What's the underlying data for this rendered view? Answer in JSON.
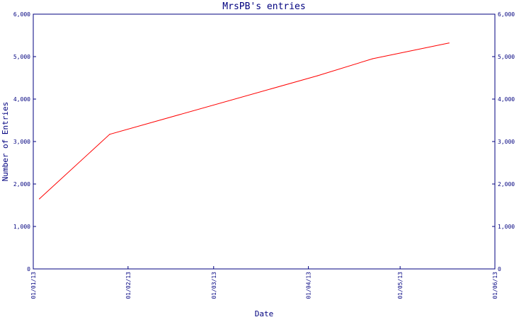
{
  "chart_data": {
    "type": "line",
    "title": "MrsPB's entries",
    "xlabel": "Date",
    "ylabel": "Number of Entries",
    "x_tick_labels": [
      "01/01/13",
      "01/02/13",
      "01/03/13",
      "01/04/13",
      "01/05/13",
      "01/06/13"
    ],
    "y_tick_labels": [
      "0",
      "1,000",
      "2,000",
      "3,000",
      "4,000",
      "5,000",
      "6,000"
    ],
    "y_right_tick_labels": [
      "0",
      "1,000",
      "2,000",
      "3,000",
      "4,000",
      "5,000",
      "6,000"
    ],
    "xlim": [
      "2013-01-01",
      "2013-06-01"
    ],
    "ylim": [
      0,
      6000
    ],
    "grid": false,
    "legend": "none",
    "series": [
      {
        "color": "#ff0000",
        "x": [
          "2013-01-03",
          "2013-01-26",
          "2013-04-04",
          "2013-04-22",
          "2013-05-17"
        ],
        "y": [
          1650,
          3170,
          4550,
          4950,
          5320
        ]
      }
    ],
    "colors": {
      "axis": "#00007f",
      "text": "#00007f",
      "line": "#ff0000",
      "background": "#ffffff"
    }
  }
}
